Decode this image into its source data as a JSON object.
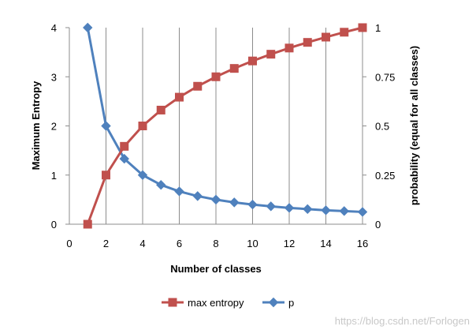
{
  "chart_data": {
    "type": "line",
    "title": "",
    "xlabel": "Number of classes",
    "ylabel_left": "Maximum Entropy",
    "ylabel_right": "probability (equal for all classes)",
    "xlim": [
      0,
      16
    ],
    "ylim_left": [
      0,
      4
    ],
    "ylim_right": [
      0,
      1
    ],
    "x_ticks": [
      "0",
      "2",
      "4",
      "6",
      "8",
      "10",
      "12",
      "14",
      "16"
    ],
    "y_left_ticks": [
      "0",
      "1",
      "2",
      "3",
      "4"
    ],
    "y_right_ticks": [
      "0",
      "0.25",
      "0.5",
      "0.75",
      "1"
    ],
    "grid": "vertical",
    "legend_position": "bottom",
    "series": [
      {
        "name": "max entropy",
        "axis": "left",
        "color": "#c0504d",
        "marker": "square",
        "x": [
          1,
          2,
          3,
          4,
          5,
          6,
          7,
          8,
          9,
          10,
          11,
          12,
          13,
          14,
          15,
          16
        ],
        "values": [
          0,
          1,
          1.585,
          2,
          2.322,
          2.585,
          2.807,
          3,
          3.17,
          3.322,
          3.459,
          3.585,
          3.7,
          3.807,
          3.907,
          4
        ]
      },
      {
        "name": "p",
        "axis": "right",
        "color": "#4f81bd",
        "marker": "diamond",
        "x": [
          1,
          2,
          3,
          4,
          5,
          6,
          7,
          8,
          9,
          10,
          11,
          12,
          13,
          14,
          15,
          16
        ],
        "values": [
          1,
          0.5,
          0.333,
          0.25,
          0.2,
          0.167,
          0.143,
          0.125,
          0.111,
          0.1,
          0.091,
          0.083,
          0.077,
          0.071,
          0.067,
          0.0625
        ]
      }
    ]
  },
  "watermark": "https://blog.csdn.net/Forlogen"
}
